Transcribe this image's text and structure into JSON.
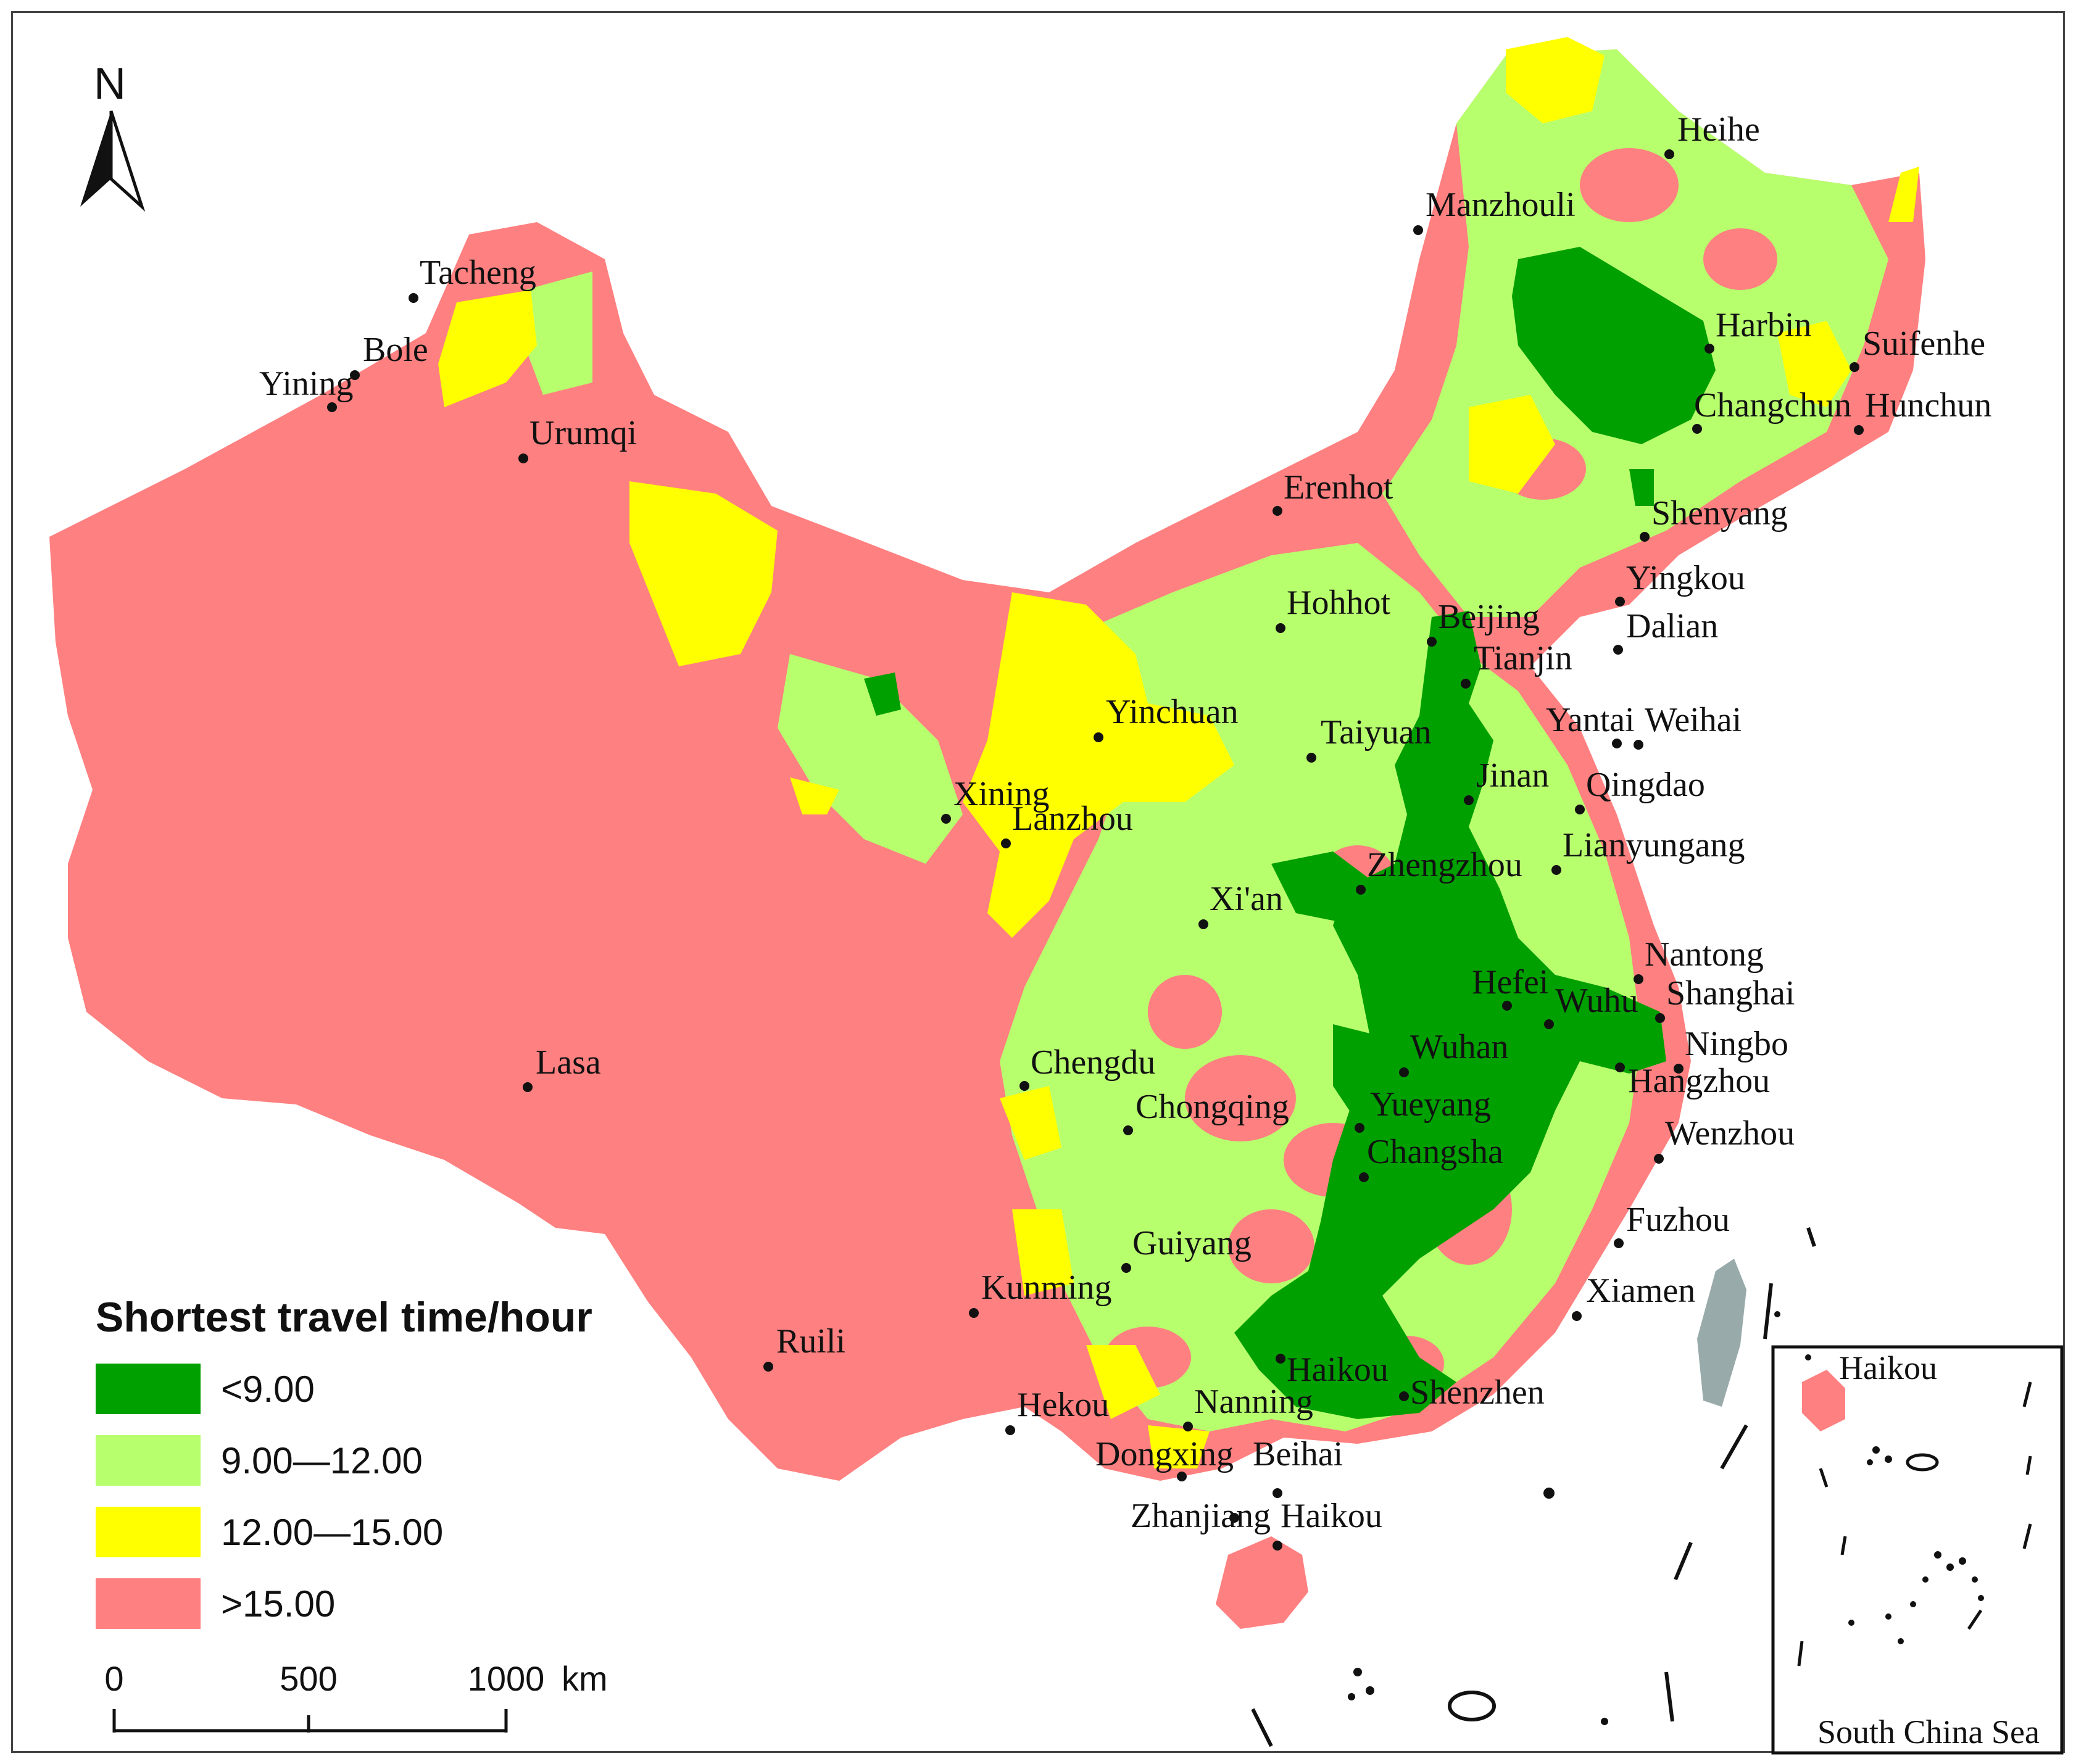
{
  "map": {
    "north_label": "N",
    "legend": {
      "title": "Shortest travel time/hour",
      "items": [
        {
          "label": "<9.00",
          "color": "#00a000"
        },
        {
          "label": "9.00—12.00",
          "color": "#b8ff6e"
        },
        {
          "label": "12.00—15.00",
          "color": "#ffff00"
        },
        {
          "label": ">15.00",
          "color": "#ff8080"
        }
      ]
    },
    "scale_bar": {
      "labels": [
        "0",
        "500",
        "1000"
      ],
      "unit": "km"
    },
    "inset": {
      "caption": "South China Sea",
      "city": "Haikou"
    },
    "cities": [
      "Heihe",
      "Manzhouli",
      "Tacheng",
      "Bole",
      "Yining",
      "Urumqi",
      "Harbin",
      "Suifenhe",
      "Changchun",
      "Hunchun",
      "Erenhot",
      "Shenyang",
      "Yingkou",
      "Dalian",
      "Hohhot",
      "Beijing",
      "Tianjin",
      "Yinchuan",
      "Taiyuan",
      "Yantai",
      "Weihai",
      "Jinan",
      "Qingdao",
      "Xining",
      "Lanzhou",
      "Lianyungang",
      "Zhengzhou",
      "Xi'an",
      "Nantong",
      "Hefei",
      "Wuhu",
      "Shanghai",
      "Lasa",
      "Wuhan",
      "Ningbo",
      "Chengdu",
      "Hangzhou",
      "Yueyang",
      "Chongqing",
      "Wenzhou",
      "Changsha",
      "Fuzhou",
      "Guiyang",
      "Kunming",
      "Xiamen",
      "Ruili",
      "Haikou",
      "Nanning",
      "Shenzhen",
      "Hekou",
      "Dongxing",
      "Beihai",
      "Zhanjiang",
      "Haikou"
    ]
  }
}
